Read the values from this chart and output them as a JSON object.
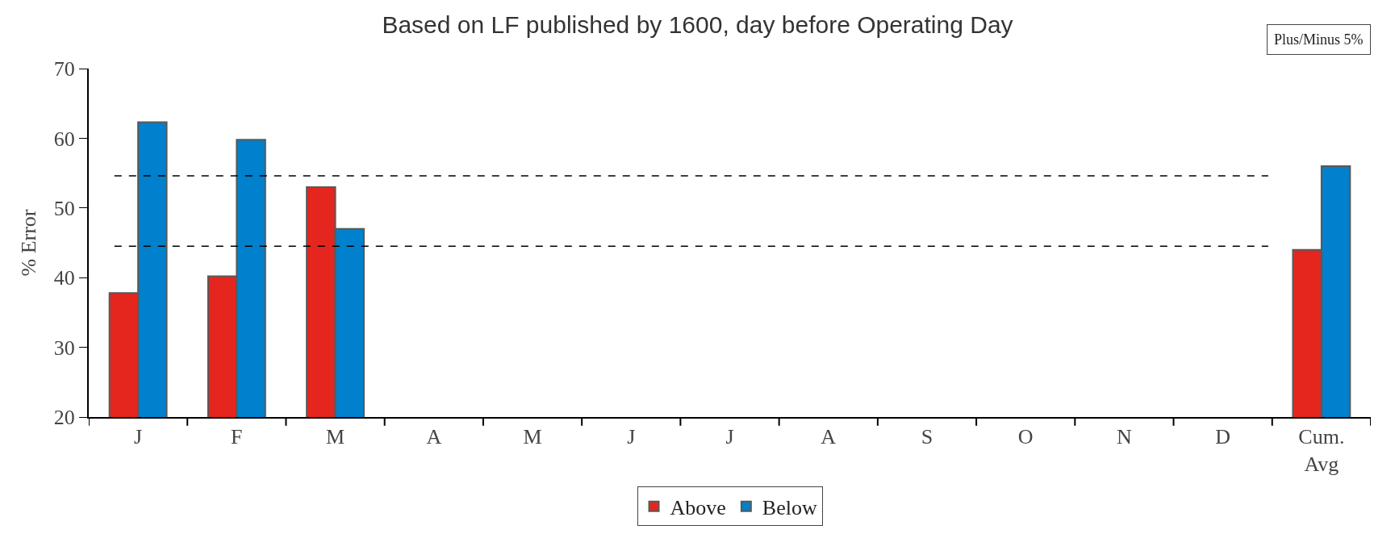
{
  "chart_data": {
    "type": "bar",
    "title": "Based on LF published by 1600, day before Operating Day",
    "ylabel": "% Error",
    "categories": [
      "J",
      "F",
      "M",
      "A",
      "M",
      "J",
      "J",
      "A",
      "S",
      "O",
      "N",
      "D",
      "Cum.\nAvg"
    ],
    "series": [
      {
        "name": "Above",
        "color": "#e5261e",
        "values": [
          37.8,
          40.2,
          53.0,
          null,
          null,
          null,
          null,
          null,
          null,
          null,
          null,
          null,
          44.0
        ]
      },
      {
        "name": "Below",
        "color": "#0080cd",
        "values": [
          62.3,
          59.8,
          47.0,
          null,
          null,
          null,
          null,
          null,
          null,
          null,
          null,
          null,
          56.0
        ]
      }
    ],
    "ylim": [
      20,
      70
    ],
    "yticks": [
      20,
      30,
      40,
      50,
      60,
      70
    ],
    "ref_lines": [
      {
        "axis": "y",
        "value": 54.6,
        "color": "#000000",
        "line_style": "dashed"
      },
      {
        "axis": "y",
        "value": 44.5,
        "color": "#000000",
        "line_style": "dashed"
      }
    ],
    "annotations": [
      "Plus/Minus 5%"
    ],
    "legend": "bottom"
  }
}
